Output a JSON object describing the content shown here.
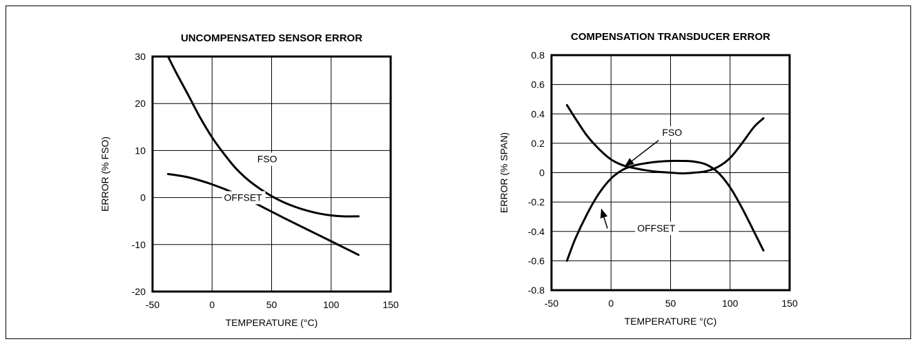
{
  "chart_data": [
    {
      "type": "line",
      "title": "UNCOMPENSATED SENSOR ERROR",
      "xlabel": "TEMPERATURE (°C)",
      "ylabel": "ERROR (% FSO)",
      "xlim": [
        -50,
        150
      ],
      "ylim": [
        -20,
        30
      ],
      "xticks": [
        -50,
        0,
        50,
        100,
        150
      ],
      "yticks": [
        -20,
        -10,
        0,
        10,
        20,
        30
      ],
      "xtick_labels": [
        "-50",
        "0",
        "50",
        "100",
        "150"
      ],
      "ytick_labels": [
        "-20",
        "-10",
        "0",
        "10",
        "20",
        "30"
      ],
      "grid": true,
      "series": [
        {
          "name": "FSO",
          "x": [
            -37,
            -30,
            -20,
            -10,
            0,
            10,
            20,
            30,
            40,
            50,
            60,
            70,
            80,
            90,
            100,
            110,
            123
          ],
          "y": [
            30.0,
            26.5,
            21.8,
            17.0,
            12.8,
            9.3,
            6.2,
            3.8,
            1.9,
            0.3,
            -1.0,
            -2.0,
            -2.8,
            -3.4,
            -3.8,
            -4.0,
            -4.0
          ]
        },
        {
          "name": "OFFSET",
          "x": [
            -37,
            -20,
            0,
            20,
            40,
            60,
            80,
            100,
            123
          ],
          "y": [
            5.0,
            4.3,
            2.8,
            0.8,
            -1.7,
            -4.3,
            -6.8,
            -9.3,
            -12.2
          ]
        }
      ],
      "annotations": [
        {
          "text": "FSO",
          "x": 38,
          "y": 7.5
        },
        {
          "text": "OFFSET",
          "x": 10,
          "y": -0.7
        }
      ]
    },
    {
      "type": "line",
      "title": "COMPENSATION TRANSDUCER ERROR",
      "xlabel": "TEMPERATURE °(C)",
      "ylabel": "ERROR (% SPAN)",
      "xlim": [
        -50,
        150
      ],
      "ylim": [
        -0.8,
        0.8
      ],
      "xticks": [
        -50,
        0,
        50,
        100,
        150
      ],
      "yticks": [
        -0.8,
        -0.6,
        -0.4,
        -0.2,
        0,
        0.2,
        0.4,
        0.6,
        0.8
      ],
      "xtick_labels": [
        "-50",
        "0",
        "50",
        "100",
        "150"
      ],
      "ytick_labels": [
        "-0.8",
        "-0.6",
        "-0.4",
        "-0.2",
        "0",
        "0.2",
        "0.4",
        "0.6",
        "0.8"
      ],
      "grid": true,
      "series": [
        {
          "name": "FSO",
          "x": [
            -37,
            -30,
            -20,
            -10,
            0,
            10,
            20,
            30,
            40,
            50,
            60,
            70,
            80,
            90,
            100,
            110,
            120,
            128
          ],
          "y": [
            0.46,
            0.37,
            0.25,
            0.16,
            0.09,
            0.05,
            0.03,
            0.015,
            0.005,
            0.0,
            -0.005,
            0.0,
            0.01,
            0.04,
            0.1,
            0.2,
            0.31,
            0.37
          ]
        },
        {
          "name": "OFFSET",
          "x": [
            -37,
            -30,
            -20,
            -10,
            0,
            10,
            20,
            30,
            40,
            50,
            60,
            70,
            80,
            90,
            100,
            110,
            120,
            128
          ],
          "y": [
            -0.6,
            -0.45,
            -0.28,
            -0.14,
            -0.04,
            0.02,
            0.05,
            0.065,
            0.075,
            0.08,
            0.08,
            0.075,
            0.055,
            0.0,
            -0.1,
            -0.24,
            -0.4,
            -0.53
          ]
        }
      ],
      "annotations": [
        {
          "text": "FSO",
          "x": 43,
          "y": 0.25
        },
        {
          "text": "OFFSET",
          "x": 22,
          "y": -0.4
        }
      ]
    }
  ]
}
